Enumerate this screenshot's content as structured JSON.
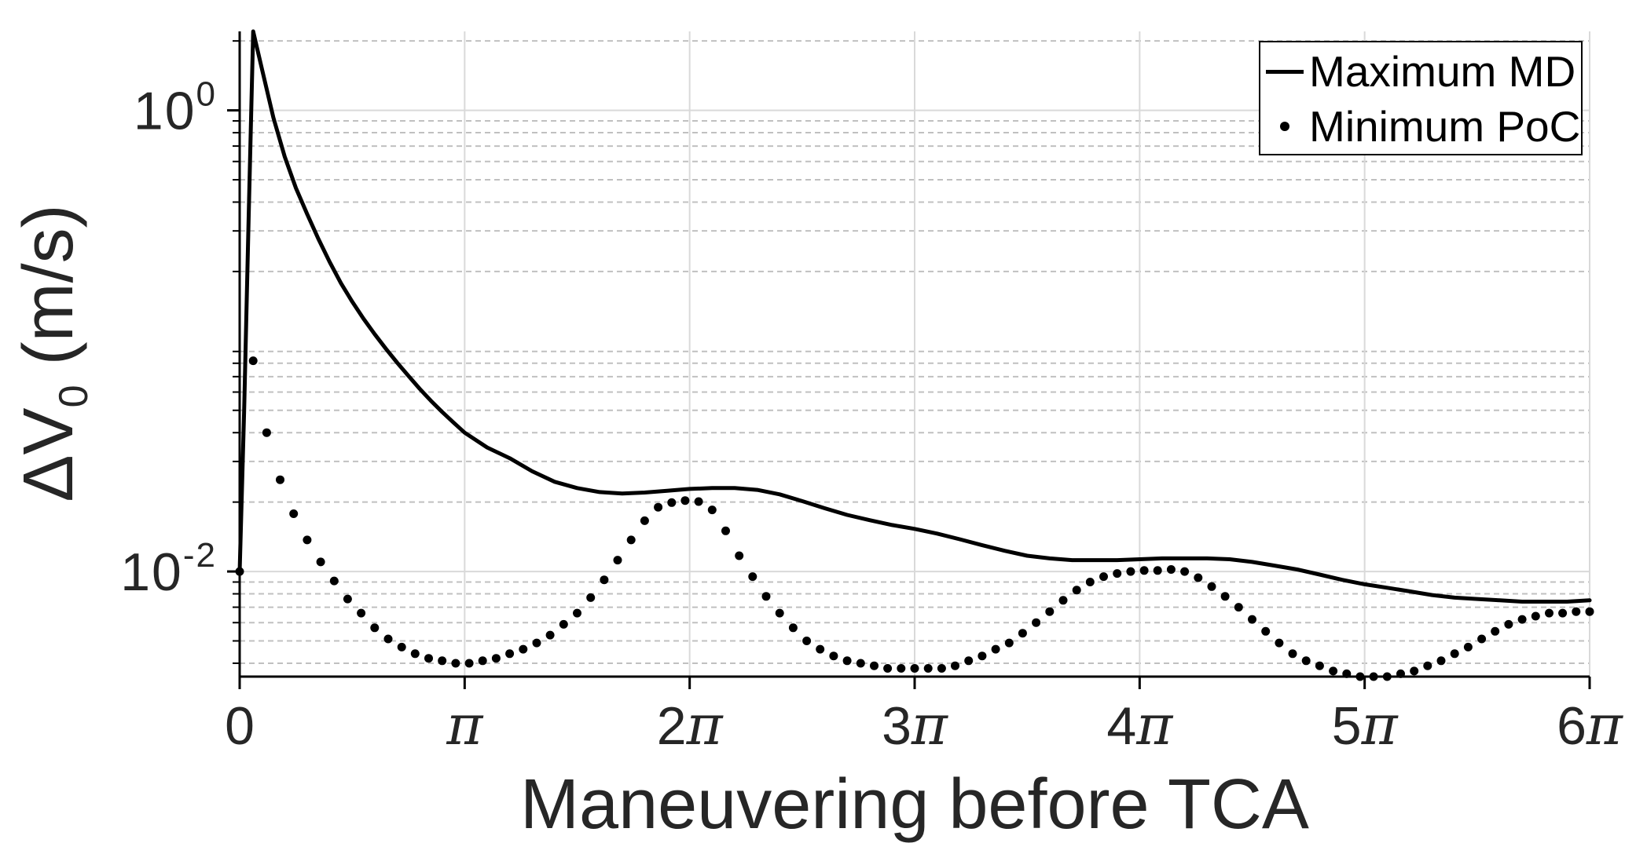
{
  "colors": {
    "series": "#000000",
    "axis": "#000000",
    "major_grid": "#d9d9d9",
    "minor_grid": "#c0c0c0",
    "tick_label": "#262626",
    "background": "#ffffff"
  },
  "chart_data": {
    "type": "line",
    "title": "",
    "xlabel": "Maneuvering before TCA",
    "ylabel": "ΔV_0 (m/s)",
    "ylabel_parts": {
      "main": "ΔV",
      "sub": "0",
      "rest": " (m/s)"
    },
    "yscale": "log",
    "xlim_pi": [
      0,
      6
    ],
    "ylim": [
      0.0035,
      2.2
    ],
    "grid": {
      "major": true,
      "minor": true
    },
    "x_ticks": [
      {
        "value_pi": 0,
        "label": "0"
      },
      {
        "value_pi": 1,
        "label": "π"
      },
      {
        "value_pi": 2,
        "label": "2π"
      },
      {
        "value_pi": 3,
        "label": "3π"
      },
      {
        "value_pi": 4,
        "label": "4π"
      },
      {
        "value_pi": 5,
        "label": "5π"
      },
      {
        "value_pi": 6,
        "label": "6π"
      }
    ],
    "y_ticks": [
      {
        "value": 1,
        "base": "10",
        "exp": "0"
      },
      {
        "value": 0.01,
        "base": "10",
        "exp": "-2"
      }
    ],
    "legend": {
      "position": "northeast",
      "entries": [
        {
          "label": "Maximum MD",
          "style": "solid-line"
        },
        {
          "label": "Minimum PoC",
          "style": "dot-marker"
        }
      ]
    },
    "series": [
      {
        "name": "Maximum MD",
        "type": "line",
        "color": "#000000",
        "x_pi": [
          0,
          0.02,
          0.04,
          0.06,
          0.1,
          0.15,
          0.2,
          0.25,
          0.3,
          0.35,
          0.4,
          0.45,
          0.5,
          0.55,
          0.6,
          0.65,
          0.7,
          0.75,
          0.8,
          0.85,
          0.9,
          0.95,
          1,
          1.1,
          1.2,
          1.3,
          1.4,
          1.5,
          1.6,
          1.7,
          1.8,
          1.9,
          2,
          2.1,
          2.2,
          2.3,
          2.4,
          2.5,
          2.6,
          2.7,
          2.8,
          2.9,
          3,
          3.1,
          3.2,
          3.3,
          3.4,
          3.5,
          3.6,
          3.7,
          3.8,
          3.9,
          4,
          4.1,
          4.2,
          4.3,
          4.4,
          4.5,
          4.6,
          4.7,
          4.8,
          4.9,
          5,
          5.1,
          5.2,
          5.3,
          5.4,
          5.5,
          5.6,
          5.7,
          5.8,
          5.9,
          6
        ],
        "y": [
          0.01,
          0.05,
          0.35,
          2.2,
          1.5,
          0.93,
          0.63,
          0.46,
          0.355,
          0.277,
          0.22,
          0.178,
          0.148,
          0.125,
          0.107,
          0.0925,
          0.0805,
          0.0705,
          0.062,
          0.055,
          0.0492,
          0.0443,
          0.04,
          0.0345,
          0.031,
          0.0272,
          0.0245,
          0.023,
          0.0221,
          0.0218,
          0.022,
          0.0224,
          0.0228,
          0.023,
          0.023,
          0.0226,
          0.0216,
          0.0202,
          0.0188,
          0.0176,
          0.0167,
          0.0159,
          0.0153,
          0.0146,
          0.0138,
          0.013,
          0.0123,
          0.0117,
          0.0114,
          0.0112,
          0.0112,
          0.0112,
          0.0113,
          0.0114,
          0.0114,
          0.0114,
          0.0113,
          0.011,
          0.0106,
          0.0102,
          0.0097,
          0.0092,
          0.0088,
          0.0085,
          0.0082,
          0.0079,
          0.0077,
          0.0076,
          0.0075,
          0.0074,
          0.0074,
          0.0074,
          0.0075
        ]
      },
      {
        "name": "Minimum PoC",
        "type": "scatter",
        "color": "#000000",
        "marker_radius": 5.5,
        "x_pi": [
          0,
          0.06,
          0.12,
          0.18,
          0.24,
          0.3,
          0.36,
          0.42,
          0.48,
          0.54,
          0.6,
          0.66,
          0.72,
          0.78,
          0.84,
          0.9,
          0.96,
          1.02,
          1.08,
          1.14,
          1.2,
          1.26,
          1.32,
          1.38,
          1.44,
          1.5,
          1.56,
          1.62,
          1.68,
          1.74,
          1.8,
          1.86,
          1.92,
          1.98,
          2.04,
          2.1,
          2.16,
          2.22,
          2.28,
          2.34,
          2.4,
          2.46,
          2.52,
          2.58,
          2.64,
          2.7,
          2.76,
          2.82,
          2.88,
          2.94,
          3,
          3.06,
          3.12,
          3.18,
          3.24,
          3.3,
          3.36,
          3.42,
          3.48,
          3.54,
          3.6,
          3.66,
          3.72,
          3.78,
          3.84,
          3.9,
          3.96,
          4.02,
          4.08,
          4.14,
          4.2,
          4.26,
          4.32,
          4.38,
          4.44,
          4.5,
          4.56,
          4.62,
          4.68,
          4.74,
          4.8,
          4.86,
          4.92,
          4.98,
          5.04,
          5.1,
          5.16,
          5.22,
          5.28,
          5.34,
          5.4,
          5.46,
          5.52,
          5.58,
          5.64,
          5.7,
          5.76,
          5.82,
          5.88,
          5.94,
          6
        ],
        "y": [
          0.01,
          0.082,
          0.04,
          0.025,
          0.0178,
          0.0137,
          0.011,
          0.0091,
          0.0076,
          0.0066,
          0.0057,
          0.0051,
          0.0047,
          0.0044,
          0.0042,
          0.0041,
          0.004,
          0.004,
          0.0041,
          0.0042,
          0.0044,
          0.0046,
          0.0049,
          0.0053,
          0.0059,
          0.0066,
          0.0077,
          0.0092,
          0.0112,
          0.0137,
          0.0166,
          0.019,
          0.0199,
          0.0203,
          0.0201,
          0.0185,
          0.015,
          0.0117,
          0.0095,
          0.0078,
          0.0066,
          0.0057,
          0.005,
          0.0046,
          0.0043,
          0.0041,
          0.004,
          0.0039,
          0.0038,
          0.0038,
          0.0038,
          0.0038,
          0.0038,
          0.0039,
          0.0041,
          0.0043,
          0.0046,
          0.0049,
          0.0054,
          0.006,
          0.0067,
          0.0075,
          0.0083,
          0.009,
          0.0095,
          0.0098,
          0.01,
          0.0101,
          0.0101,
          0.0102,
          0.01,
          0.0094,
          0.0086,
          0.0078,
          0.007,
          0.0062,
          0.0055,
          0.0049,
          0.0044,
          0.0041,
          0.0039,
          0.0037,
          0.0036,
          0.0035,
          0.0035,
          0.0035,
          0.0036,
          0.0037,
          0.0039,
          0.0041,
          0.0044,
          0.0047,
          0.0051,
          0.0055,
          0.0059,
          0.0062,
          0.0064,
          0.0066,
          0.0066,
          0.0067,
          0.0067
        ]
      }
    ]
  }
}
